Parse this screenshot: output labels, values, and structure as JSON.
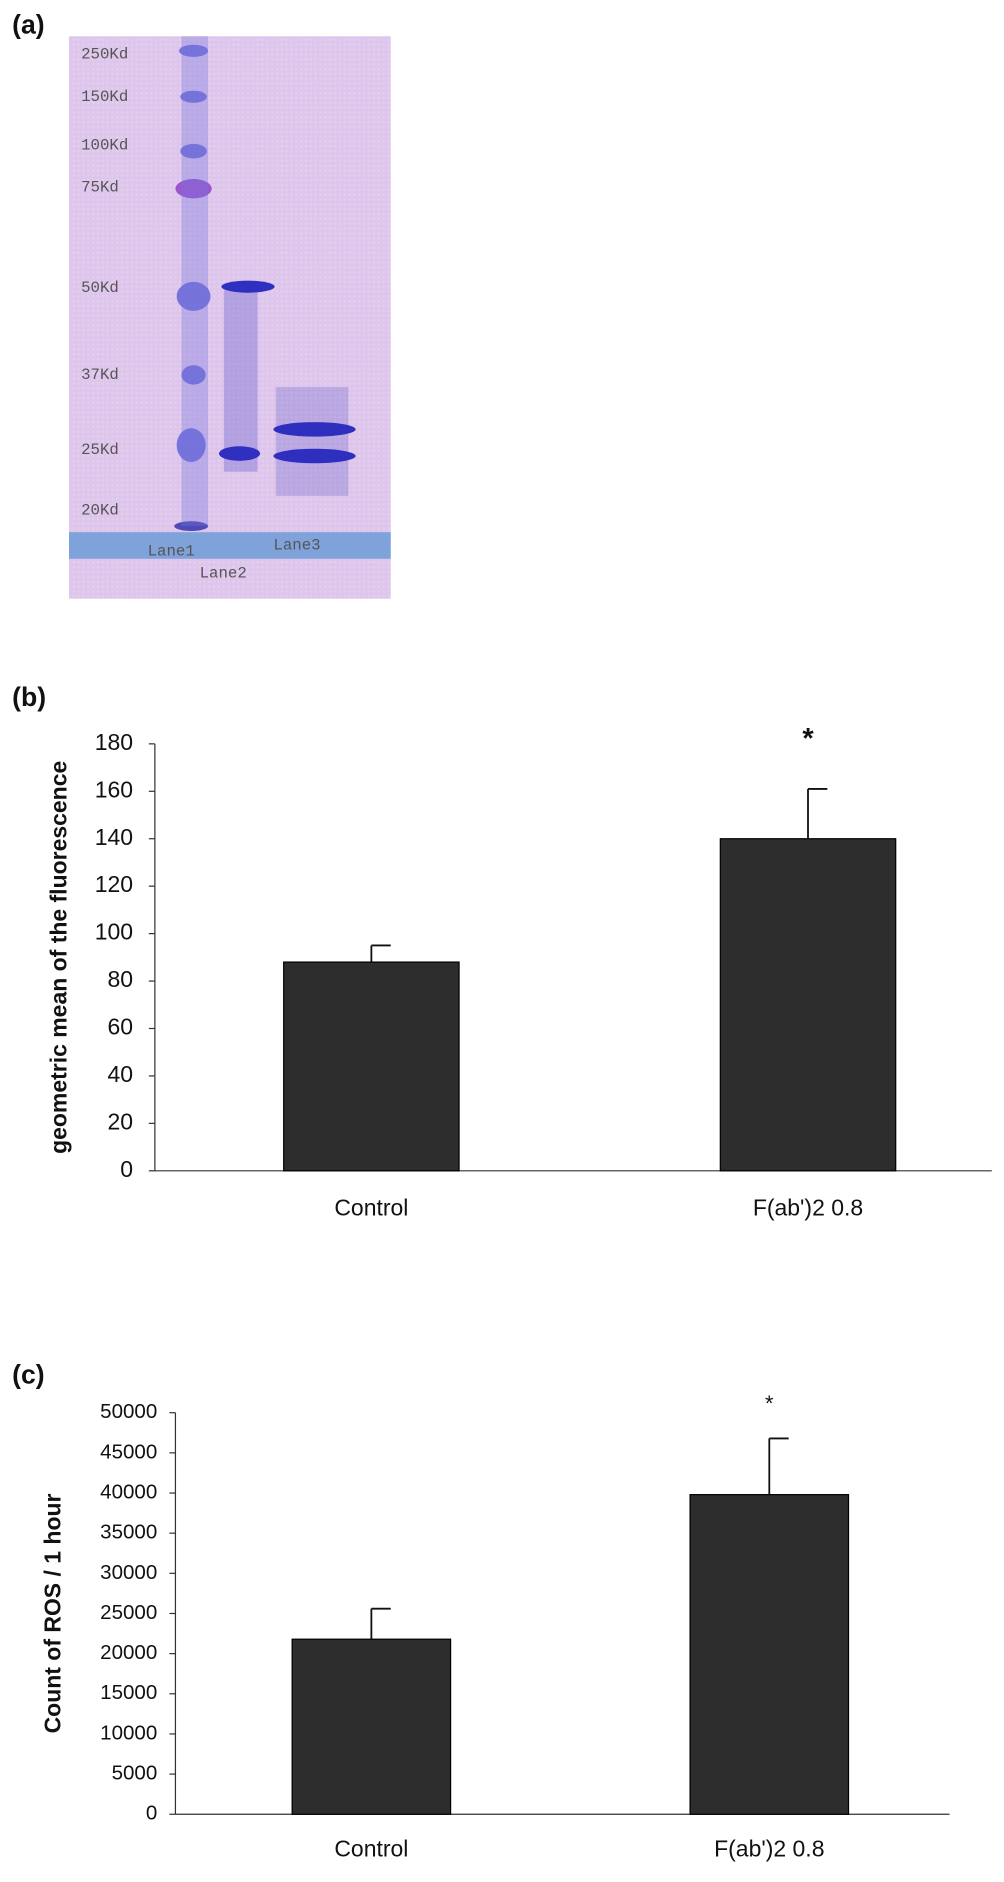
{
  "gel": {
    "panel": "(a)",
    "markers": [
      "250Kd",
      "150Kd",
      "100Kd",
      "75Kd",
      "50Kd",
      "37Kd",
      "25Kd",
      "20Kd"
    ],
    "lanes": [
      "Lane1",
      "Lane2",
      "Lane3"
    ]
  },
  "chart_data": [
    {
      "type": "bar",
      "panel": "(b)",
      "y_label": "geometric mean of the fluorescence",
      "categories": [
        "Control",
        "F(ab')2 0.8"
      ],
      "values": [
        88,
        140
      ],
      "errors": [
        7,
        21
      ],
      "annotations": [
        {
          "category": 1,
          "text": "*"
        }
      ],
      "color": "#2d2d2d",
      "ylim": [
        0,
        180
      ],
      "yticks": [
        0,
        20,
        40,
        60,
        80,
        100,
        120,
        140,
        160,
        180
      ]
    },
    {
      "type": "bar",
      "panel": "(c)",
      "y_label": "Count of ROS / 1 hour",
      "categories": [
        "Control",
        "F(ab')2  0.8"
      ],
      "values": [
        21800,
        39800
      ],
      "errors": [
        3800,
        7000
      ],
      "annotations": [
        {
          "category": 1,
          "text": "*"
        }
      ],
      "color": "#2d2d2d",
      "ylim": [
        0,
        50000
      ],
      "yticks": [
        0,
        5000,
        10000,
        15000,
        20000,
        25000,
        30000,
        35000,
        40000,
        45000,
        50000
      ]
    }
  ]
}
